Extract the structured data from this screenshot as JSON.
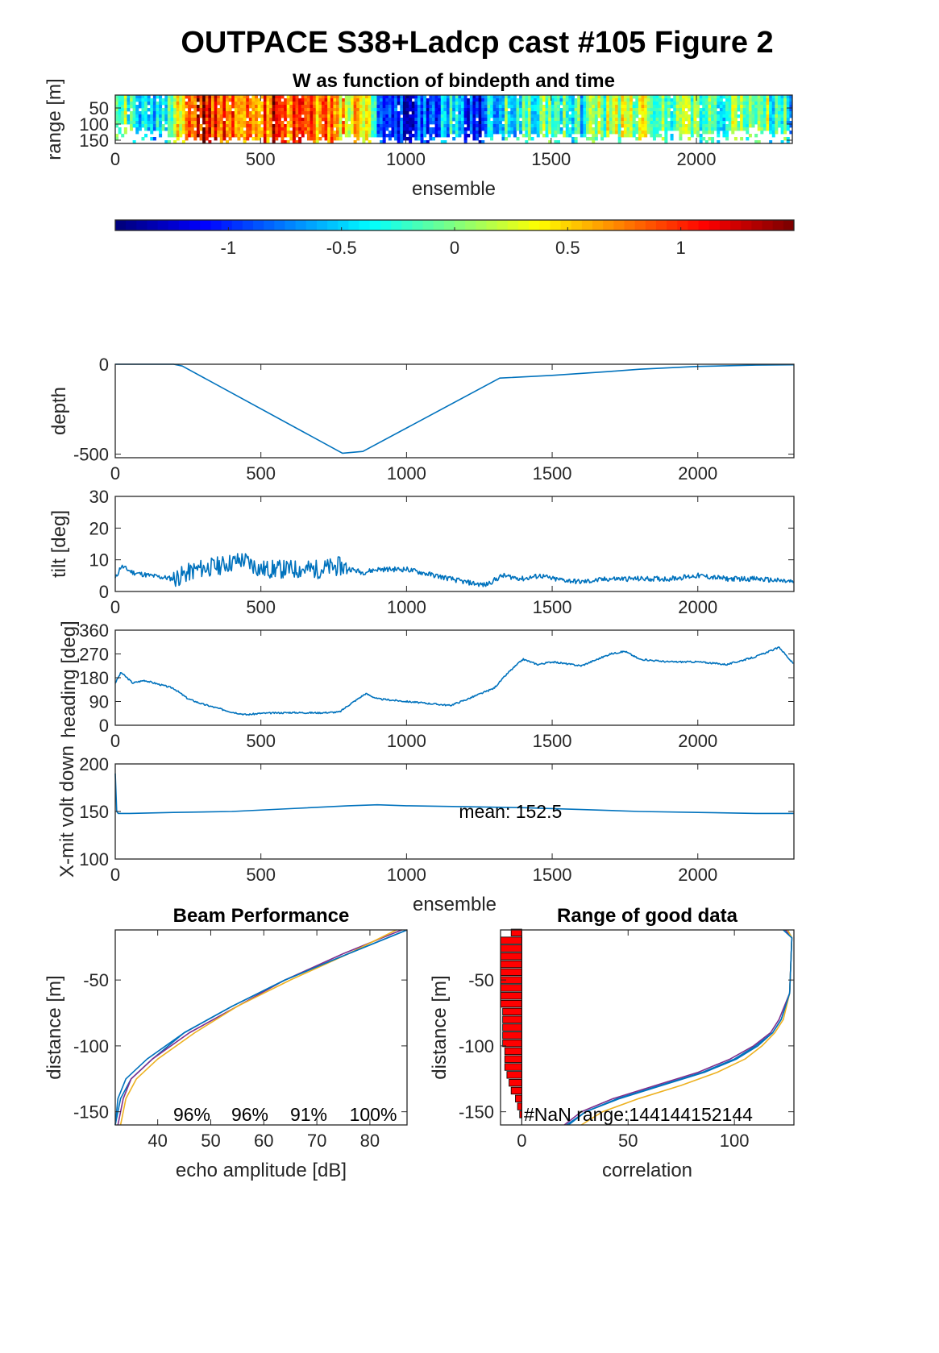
{
  "figure": {
    "title": "OUTPACE S38+Ladcp cast #105 Figure 2"
  },
  "colors": {
    "line": "#0072BD",
    "beam": [
      "#0072BD",
      "#D95319",
      "#EDB120",
      "#7E2F8E"
    ],
    "bars": "#FF0000"
  },
  "chart_data": [
    {
      "id": "w-image",
      "type": "heatmap",
      "title": "W as function of bindepth and time",
      "xlabel": "ensemble",
      "ylabel": "range [m]",
      "xlim": [
        0,
        2330
      ],
      "ylim": [
        160,
        10
      ],
      "xticks": [
        0,
        500,
        1000,
        1500,
        2000
      ],
      "yticks": [
        50,
        100,
        150
      ],
      "colormap": "jet",
      "clim": [
        -1.5,
        1.5
      ],
      "colorbar_ticks": [
        -1,
        -0.5,
        0,
        0.5,
        1
      ],
      "colorbar_ticklabels": [
        "-1",
        "-0.5",
        "0",
        "0.5",
        "1"
      ],
      "w_profile": {
        "x": [
          0,
          100,
          150,
          250,
          300,
          400,
          500,
          550,
          600,
          700,
          800,
          850,
          900,
          950,
          1000,
          1100,
          1150,
          1200,
          1250,
          1300,
          1400,
          1500,
          1600,
          1700,
          1800,
          1900,
          2000,
          2100,
          2200,
          2330
        ],
        "w": [
          0.0,
          -0.3,
          -0.5,
          0.9,
          1.2,
          1.0,
          0.8,
          1.2,
          0.9,
          0.7,
          0.5,
          0.3,
          -0.5,
          -1.0,
          -1.1,
          -0.9,
          -0.5,
          -0.9,
          -1.2,
          -0.4,
          -0.2,
          0.0,
          -0.3,
          0.1,
          0.2,
          -0.1,
          0.0,
          -0.2,
          0.1,
          -0.3
        ]
      },
      "max_range": {
        "x": [
          0,
          200,
          300,
          500,
          600,
          800,
          1000,
          1200,
          1400,
          1600,
          1800,
          2000,
          2200,
          2330
        ],
        "range": [
          110,
          140,
          150,
          150,
          158,
          145,
          150,
          140,
          135,
          145,
          140,
          130,
          125,
          125
        ]
      }
    },
    {
      "id": "depth",
      "type": "line",
      "ylabel": "depth",
      "xlim": [
        0,
        2330
      ],
      "ylim": [
        -520,
        0
      ],
      "xticks": [
        0,
        500,
        1000,
        1500,
        2000
      ],
      "yticks": [
        -500,
        0
      ],
      "x": [
        0,
        200,
        230,
        780,
        850,
        1320,
        1500,
        1700,
        1800,
        2000,
        2200,
        2330
      ],
      "y": [
        0,
        0,
        -10,
        -495,
        -485,
        -77,
        -62,
        -40,
        -28,
        -12,
        -5,
        -3
      ]
    },
    {
      "id": "tilt",
      "type": "line",
      "ylabel": "tilt [deg]",
      "xlim": [
        0,
        2330
      ],
      "ylim": [
        0,
        30
      ],
      "xticks": [
        0,
        500,
        1000,
        1500,
        2000
      ],
      "yticks": [
        0,
        10,
        20,
        30
      ],
      "x": [
        0,
        20,
        60,
        120,
        200,
        280,
        350,
        440,
        500,
        560,
        620,
        700,
        770,
        850,
        900,
        1000,
        1100,
        1200,
        1270,
        1330,
        1400,
        1460,
        1500,
        1600,
        1700,
        1800,
        1900,
        2000,
        2100,
        2200,
        2330
      ],
      "y": [
        4,
        8,
        6,
        5,
        4,
        7,
        8,
        10,
        7,
        7,
        7,
        7,
        8,
        6,
        7,
        7,
        5,
        3,
        2,
        5,
        4,
        5,
        4,
        3,
        4,
        4,
        4,
        5,
        4,
        4,
        3
      ]
    },
    {
      "id": "heading",
      "type": "line",
      "ylabel": "heading [deg]",
      "xlim": [
        0,
        2330
      ],
      "ylim": [
        0,
        360
      ],
      "xticks": [
        0,
        500,
        1000,
        1500,
        2000
      ],
      "yticks": [
        0,
        90,
        180,
        270,
        360
      ],
      "x": [
        0,
        20,
        60,
        100,
        200,
        250,
        300,
        400,
        450,
        500,
        600,
        700,
        770,
        800,
        860,
        900,
        1000,
        1100,
        1150,
        1200,
        1300,
        1350,
        1400,
        1450,
        1500,
        1600,
        1700,
        1750,
        1800,
        1900,
        2000,
        2100,
        2200,
        2280,
        2330
      ],
      "y": [
        160,
        200,
        160,
        170,
        140,
        100,
        80,
        50,
        40,
        45,
        48,
        47,
        50,
        75,
        120,
        100,
        90,
        80,
        75,
        95,
        140,
        200,
        250,
        230,
        240,
        225,
        270,
        280,
        250,
        240,
        240,
        230,
        260,
        295,
        230
      ]
    },
    {
      "id": "xmit-volt",
      "type": "line",
      "ylabel": "X-mit volt down",
      "xlabel": "ensemble",
      "xlim": [
        0,
        2330
      ],
      "ylim": [
        100,
        200
      ],
      "xticks": [
        0,
        500,
        1000,
        1500,
        2000
      ],
      "yticks": [
        100,
        150,
        200
      ],
      "annotation": "mean: 152.5",
      "x": [
        0,
        5,
        10,
        50,
        200,
        400,
        600,
        800,
        900,
        1000,
        1200,
        1400,
        1600,
        1800,
        2000,
        2200,
        2330
      ],
      "y": [
        190,
        150,
        148,
        148,
        149,
        150,
        153,
        156,
        157,
        156,
        155,
        154,
        152,
        150,
        149,
        148,
        148
      ]
    },
    {
      "id": "beam-performance",
      "type": "line",
      "title": "Beam Performance",
      "xlabel": "echo amplitude [dB]",
      "ylabel": "distance [m]",
      "xlim": [
        32,
        87
      ],
      "ylim": [
        -160,
        -12
      ],
      "xticks": [
        40,
        50,
        60,
        70,
        80
      ],
      "yticks": [
        -150,
        -100,
        -50
      ],
      "annotations": [
        "96%",
        "96%",
        "91%",
        "100%"
      ],
      "series": [
        {
          "y": [
            -12,
            -30,
            -50,
            -70,
            -90,
            -110,
            -125,
            -140,
            -160
          ],
          "x": [
            87,
            76,
            64,
            54,
            45,
            39,
            35,
            33,
            32
          ]
        },
        {
          "y": [
            -12,
            -30,
            -50,
            -70,
            -90,
            -110,
            -125,
            -140,
            -160
          ],
          "x": [
            86,
            75,
            64,
            55,
            46,
            39,
            35,
            33.5,
            32.5
          ]
        },
        {
          "y": [
            -12,
            -30,
            -50,
            -70,
            -90,
            -110,
            -125,
            -140,
            -160
          ],
          "x": [
            85,
            76,
            65,
            55,
            47,
            40,
            36,
            34,
            33
          ]
        },
        {
          "y": [
            -12,
            -30,
            -50,
            -70,
            -90,
            -110,
            -125,
            -140,
            -160
          ],
          "x": [
            87,
            76,
            64,
            54,
            45,
            38,
            34,
            32.5,
            32
          ]
        }
      ]
    },
    {
      "id": "range-good-data",
      "type": "line",
      "title": "Range of good data",
      "xlabel": "correlation",
      "ylabel": "distance [m]",
      "xlim": [
        -10,
        128
      ],
      "ylim": [
        -160,
        -12
      ],
      "xticks": [
        0,
        50,
        100
      ],
      "yticks": [
        -150,
        -100,
        -50
      ],
      "annotation": "#NaN range:144144152144",
      "series": [
        {
          "y": [
            -12,
            -18,
            -60,
            -80,
            -90,
            -100,
            -110,
            -120,
            -130,
            -140,
            -150,
            -160
          ],
          "x": [
            125,
            127,
            126,
            122,
            118,
            110,
            100,
            85,
            65,
            45,
            30,
            22
          ]
        },
        {
          "y": [
            -12,
            -18,
            -60,
            -80,
            -90,
            -100,
            -110,
            -120,
            -130,
            -140,
            -150,
            -160
          ],
          "x": [
            124,
            127,
            126,
            121,
            117,
            109,
            98,
            83,
            63,
            43,
            28,
            20
          ]
        },
        {
          "y": [
            -12,
            -18,
            -60,
            -80,
            -90,
            -100,
            -110,
            -120,
            -130,
            -140,
            -150,
            -160
          ],
          "x": [
            125,
            127,
            126,
            123,
            119,
            113,
            105,
            92,
            75,
            55,
            38,
            28
          ]
        },
        {
          "y": [
            -12,
            -18,
            -60,
            -80,
            -90,
            -100,
            -110,
            -120,
            -130,
            -140,
            -150,
            -160
          ],
          "x": [
            123,
            127,
            126,
            122,
            118,
            111,
            101,
            86,
            66,
            46,
            30,
            21
          ]
        }
      ],
      "bars": {
        "y": [
          -14,
          -20,
          -26,
          -32,
          -38,
          -44,
          -50,
          -56,
          -62,
          -68,
          -74,
          -80,
          -86,
          -92,
          -98,
          -104,
          -110,
          -116,
          -122,
          -128,
          -134,
          -140,
          -146,
          -152
        ],
        "value": [
          5,
          10,
          10,
          10,
          10,
          10,
          10,
          10,
          10,
          10,
          9,
          9,
          9,
          9,
          9,
          8,
          8,
          8,
          7,
          6,
          5,
          3,
          2,
          1
        ]
      }
    }
  ]
}
